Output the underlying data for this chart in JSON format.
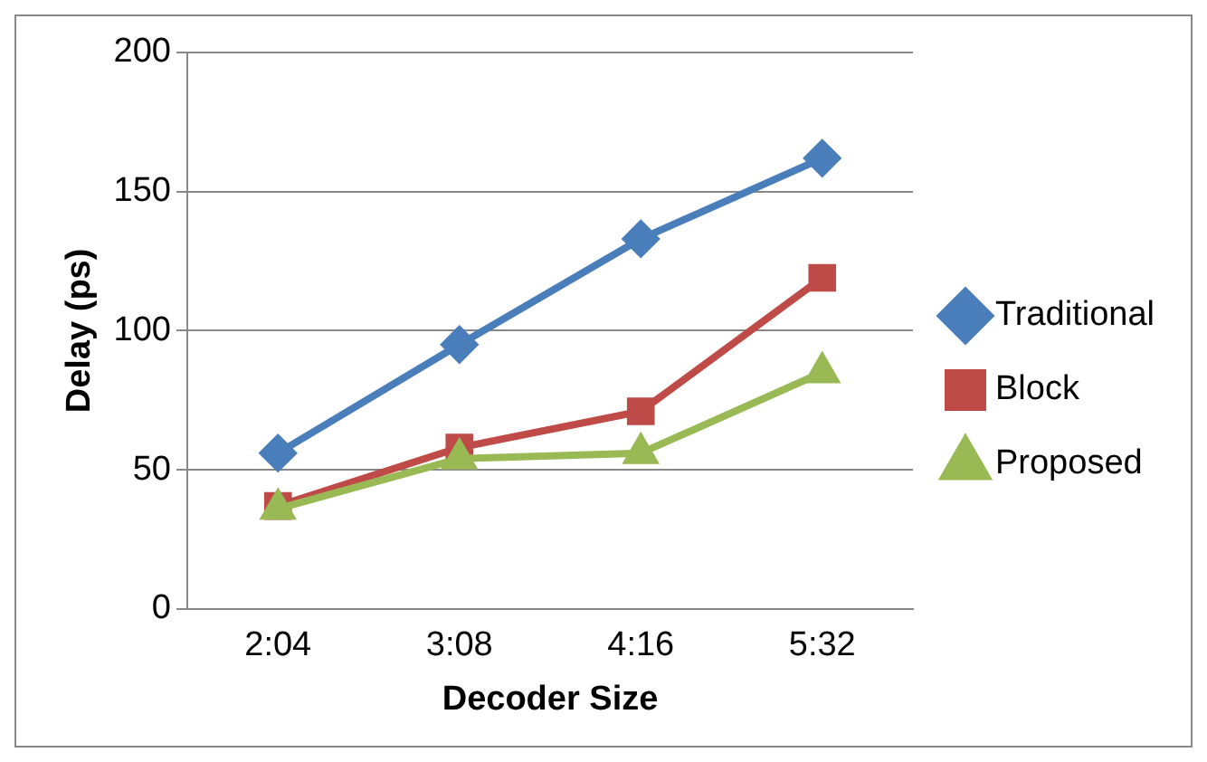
{
  "chart_data": {
    "type": "line",
    "xlabel": "Decoder Size",
    "ylabel": "Delay (ps)",
    "categories": [
      "2:04",
      "3:08",
      "4:16",
      "5:32"
    ],
    "series": [
      {
        "name": "Traditional",
        "color": "#4a7ebb",
        "marker": "diamond",
        "values": [
          56,
          95,
          133,
          162
        ]
      },
      {
        "name": "Block",
        "color": "#be4b48",
        "marker": "square",
        "values": [
          37,
          58,
          71,
          119
        ]
      },
      {
        "name": "Proposed",
        "color": "#98b954",
        "marker": "triangle",
        "values": [
          36,
          54,
          56,
          85
        ]
      }
    ],
    "ylim": [
      0,
      200
    ],
    "yticks": [
      0,
      50,
      100,
      150,
      200
    ],
    "grid": "y",
    "legend": "right",
    "line_style": "solid"
  }
}
